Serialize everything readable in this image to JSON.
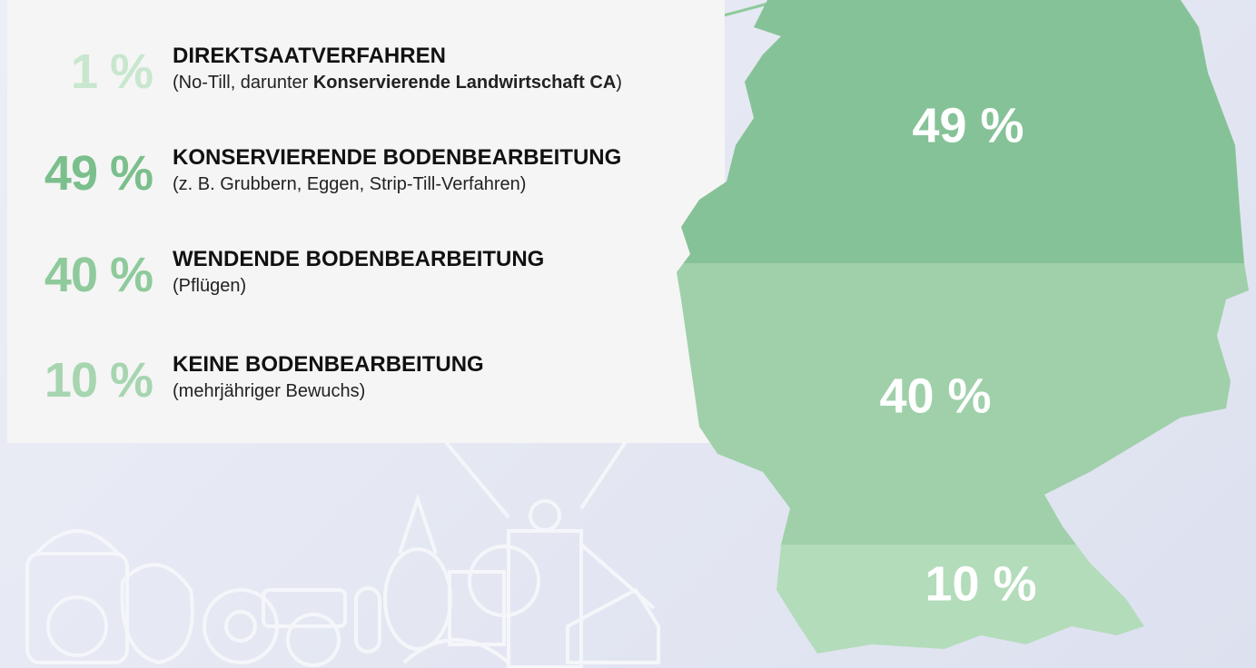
{
  "items": [
    {
      "percent": "1 %",
      "title": "DIREKTSAATVERFAHREN",
      "desc_before": "(No-Till, darunter ",
      "desc_bold": "Konservierende Landwirtschaft CA",
      "desc_after": ")"
    },
    {
      "percent": "49 %",
      "title": "KONSERVIERENDE BODENBEARBEITUNG",
      "desc": "(z. B. Grubbern, Eggen, Strip-Till-Verfahren)"
    },
    {
      "percent": "40 %",
      "title": "WENDENDE BODENBEARBEITUNG",
      "desc": "(Pflügen)"
    },
    {
      "percent": "10 %",
      "title": "KEINE BODENBEARBEITUNG",
      "desc": "(mehrjähriger Bewuchs)"
    }
  ],
  "map": {
    "labels": [
      "49 %",
      "40 %",
      "10 %"
    ]
  }
}
